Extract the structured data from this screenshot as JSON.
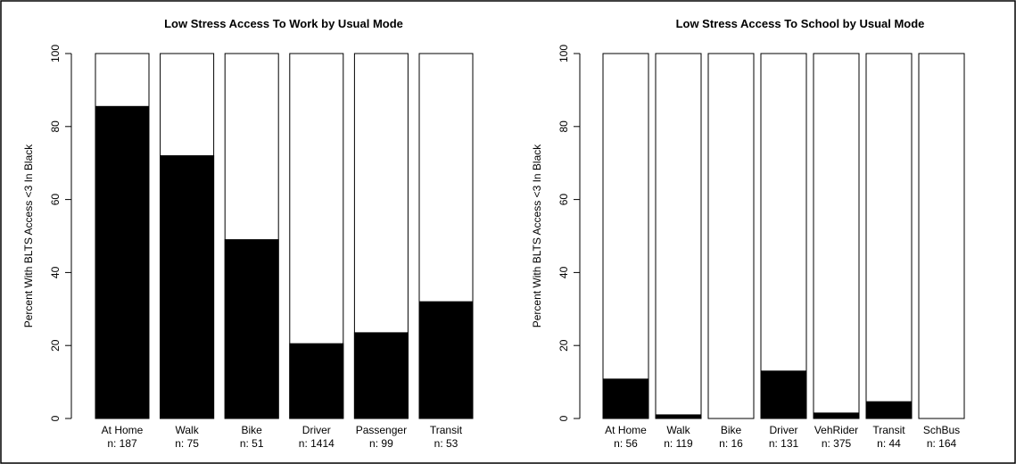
{
  "chart_data": [
    {
      "type": "bar",
      "title": "Low Stress Access To Work by Usual Mode",
      "y_label": "Percent With BLTS Access <3  In Black",
      "categories": [
        "At Home",
        "Walk",
        "Bike",
        "Driver",
        "Passenger",
        "Transit"
      ],
      "n_labels": [
        "n: 187",
        "n: 75",
        "n: 51",
        "n: 1414",
        "n: 99",
        "n: 53"
      ],
      "values": [
        85.5,
        72,
        49,
        20.5,
        23.5,
        32
      ],
      "color": "#000000",
      "ylim": [
        0,
        100
      ],
      "yticks": [
        0,
        20,
        40,
        60,
        80,
        100
      ]
    },
    {
      "type": "bar",
      "title": "Low Stress Access To School by Usual Mode",
      "y_label": "Percent With BLTS Access <3  In Black",
      "categories": [
        "At Home",
        "Walk",
        "Bike",
        "Driver",
        "VehRider",
        "Transit",
        "SchBus"
      ],
      "n_labels": [
        "n: 56",
        "n: 119",
        "n: 16",
        "n: 131",
        "n: 375",
        "n: 44",
        "n: 164"
      ],
      "values": [
        10.8,
        1,
        0,
        13,
        1.5,
        4.6,
        0
      ],
      "color": "#000000",
      "ylim": [
        0,
        100
      ],
      "yticks": [
        0,
        20,
        40,
        60,
        80,
        100
      ]
    }
  ]
}
